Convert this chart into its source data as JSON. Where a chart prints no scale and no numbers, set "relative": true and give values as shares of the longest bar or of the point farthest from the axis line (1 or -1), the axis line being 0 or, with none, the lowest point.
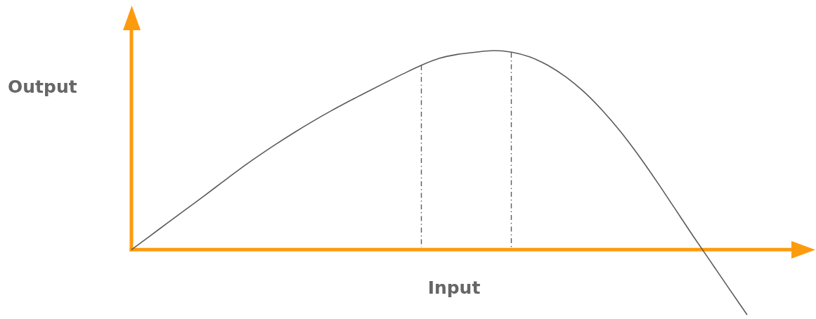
{
  "chart_data": {
    "type": "line",
    "relative": true,
    "xlabel": "Input",
    "ylabel": "Output",
    "marker": "none",
    "color": "#5a5a5a",
    "categories": [
      null,
      null,
      null,
      null,
      null,
      null,
      null,
      null,
      null,
      null,
      null,
      null,
      null,
      null,
      null,
      null,
      null,
      null,
      null,
      null,
      null,
      null,
      null,
      null,
      null,
      null,
      null,
      null,
      null,
      null,
      null,
      null,
      null,
      null,
      null
    ],
    "values": [
      0,
      0.067,
      0.135,
      0.202,
      0.269,
      0.338,
      0.406,
      0.47,
      0.531,
      0.589,
      0.644,
      0.696,
      0.745,
      0.792,
      0.838,
      0.883,
      0.926,
      0.961,
      0.981,
      0.992,
      1,
      0.992,
      0.968,
      0.926,
      0.867,
      0.792,
      0.7,
      0.594,
      0.474,
      0.344,
      0.208,
      0.071,
      -0.062,
      -0.195,
      -0.327
    ],
    "ref_lines": [
      {
        "axis": "y",
        "value": 0,
        "color": "#fd9b0e"
      }
    ]
  }
}
